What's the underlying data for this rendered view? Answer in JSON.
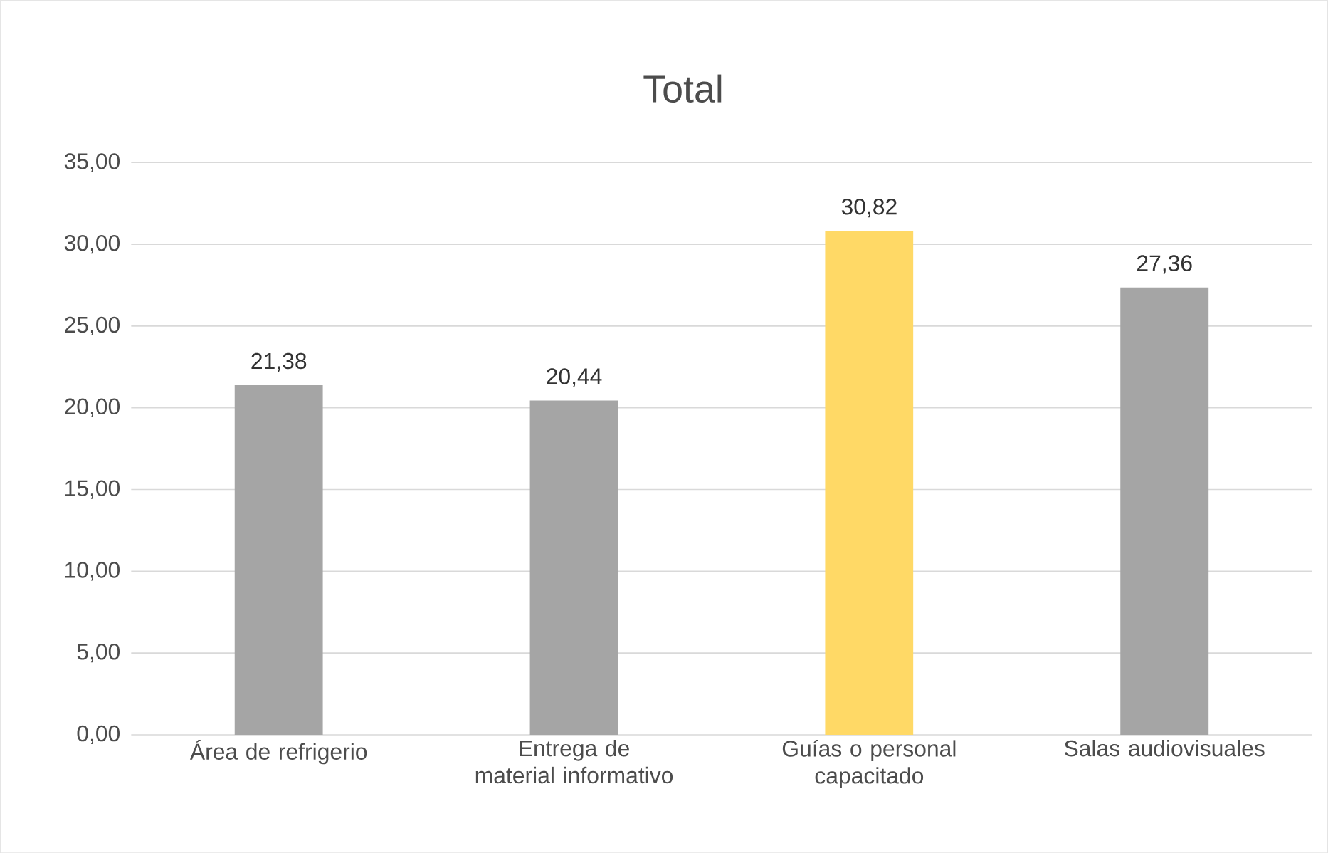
{
  "chart_data": {
    "type": "bar",
    "title": "Total",
    "categories": [
      "Área de refrigerio",
      "Entrega de material informativo",
      "Guías o personal capacitado",
      "Salas audiovisuales"
    ],
    "values": [
      21.38,
      20.44,
      30.82,
      27.36
    ],
    "colors": [
      "#a5a5a5",
      "#a5a5a5",
      "#ffd966",
      "#a5a5a5"
    ],
    "value_labels": [
      "21,38",
      "20,44",
      "30,82",
      "27,36"
    ],
    "ylim": [
      0,
      35
    ],
    "yticks": [
      {
        "value": 0,
        "label": "0,00"
      },
      {
        "value": 5,
        "label": "5,00"
      },
      {
        "value": 10,
        "label": "10,00"
      },
      {
        "value": 15,
        "label": "15,00"
      },
      {
        "value": 20,
        "label": "20,00"
      },
      {
        "value": 25,
        "label": "25,00"
      },
      {
        "value": 30,
        "label": "30,00"
      },
      {
        "value": 35,
        "label": "35,00"
      }
    ],
    "grid": "y"
  }
}
